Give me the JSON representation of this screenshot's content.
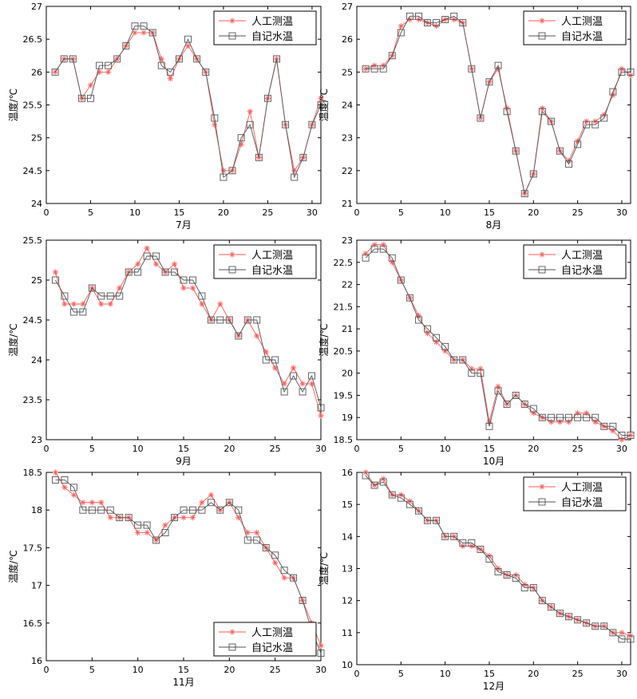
{
  "chart_data": [
    {
      "type": "line",
      "xlabel": "7月",
      "ylabel": "温度/℃",
      "xlim": [
        0,
        31
      ],
      "ylim": [
        24,
        27
      ],
      "xticks": [
        0,
        5,
        10,
        15,
        20,
        25,
        30
      ],
      "yticks": [
        24,
        24.5,
        25,
        25.5,
        26,
        26.5,
        27
      ],
      "legend_position": "top-right",
      "series": [
        {
          "name": "人工测温",
          "color": "#ff5a5a",
          "marker": "star",
          "x": [
            1,
            2,
            3,
            4,
            5,
            6,
            7,
            8,
            9,
            10,
            11,
            12,
            13,
            14,
            15,
            16,
            17,
            18,
            19,
            20,
            21,
            22,
            23,
            24,
            25,
            26,
            27,
            28,
            29,
            30,
            31
          ],
          "values": [
            26.0,
            26.2,
            26.2,
            25.6,
            25.8,
            26.0,
            26.0,
            26.2,
            26.4,
            26.6,
            26.6,
            26.6,
            26.2,
            25.9,
            26.2,
            26.4,
            26.2,
            26.0,
            25.2,
            24.5,
            24.5,
            24.9,
            25.4,
            24.7,
            25.6,
            26.2,
            25.2,
            24.5,
            24.7,
            25.2,
            25.6
          ]
        },
        {
          "name": "自记水温",
          "color": "#555555",
          "marker": "square",
          "x": [
            1,
            2,
            3,
            4,
            5,
            6,
            7,
            8,
            9,
            10,
            11,
            12,
            13,
            14,
            15,
            16,
            17,
            18,
            19,
            20,
            21,
            22,
            23,
            24,
            25,
            26,
            27,
            28,
            29,
            30,
            31
          ],
          "values": [
            26.0,
            26.2,
            26.2,
            25.6,
            25.6,
            26.1,
            26.1,
            26.2,
            26.4,
            26.7,
            26.7,
            26.6,
            26.1,
            26.0,
            26.2,
            26.5,
            26.2,
            26.0,
            25.3,
            24.4,
            24.5,
            25.0,
            25.2,
            24.7,
            25.6,
            26.2,
            25.2,
            24.4,
            24.7,
            25.2,
            25.5
          ]
        }
      ]
    },
    {
      "type": "line",
      "xlabel": "8月",
      "ylabel": "温度/℃",
      "xlim": [
        0,
        31
      ],
      "ylim": [
        21,
        27
      ],
      "xticks": [
        0,
        5,
        10,
        15,
        20,
        25,
        30
      ],
      "yticks": [
        21,
        22,
        23,
        24,
        25,
        26,
        27
      ],
      "legend_position": "top-right",
      "series": [
        {
          "name": "人工测温",
          "color": "#ff5a5a",
          "marker": "star",
          "x": [
            1,
            2,
            3,
            4,
            5,
            6,
            7,
            8,
            9,
            10,
            11,
            12,
            13,
            14,
            15,
            16,
            17,
            18,
            19,
            20,
            21,
            22,
            23,
            24,
            25,
            26,
            27,
            28,
            29,
            30,
            31
          ],
          "values": [
            25.1,
            25.2,
            25.2,
            25.5,
            26.4,
            26.6,
            26.6,
            26.5,
            26.4,
            26.6,
            26.6,
            26.5,
            25.1,
            23.6,
            24.7,
            25.1,
            23.9,
            22.6,
            21.3,
            21.9,
            23.9,
            23.5,
            22.6,
            22.3,
            22.9,
            23.5,
            23.5,
            23.7,
            24.3,
            25.1,
            24.9
          ]
        },
        {
          "name": "自记水温",
          "color": "#555555",
          "marker": "square",
          "x": [
            1,
            2,
            3,
            4,
            5,
            6,
            7,
            8,
            9,
            10,
            11,
            12,
            13,
            14,
            15,
            16,
            17,
            18,
            19,
            20,
            21,
            22,
            23,
            24,
            25,
            26,
            27,
            28,
            29,
            30,
            31
          ],
          "values": [
            25.1,
            25.1,
            25.1,
            25.5,
            26.2,
            26.7,
            26.7,
            26.5,
            26.5,
            26.6,
            26.7,
            26.5,
            25.1,
            23.6,
            24.7,
            25.2,
            23.8,
            22.6,
            21.3,
            21.9,
            23.8,
            23.5,
            22.6,
            22.2,
            22.8,
            23.4,
            23.4,
            23.6,
            24.4,
            25.0,
            25.0
          ]
        }
      ]
    },
    {
      "type": "line",
      "xlabel": "9月",
      "ylabel": "温度/℃",
      "xlim": [
        0,
        30
      ],
      "ylim": [
        23,
        25.5
      ],
      "xticks": [
        0,
        5,
        10,
        15,
        20,
        25,
        30
      ],
      "yticks": [
        23,
        23.5,
        24,
        24.5,
        25,
        25.5
      ],
      "legend_position": "top-right",
      "series": [
        {
          "name": "人工测温",
          "color": "#ff5a5a",
          "marker": "star",
          "x": [
            1,
            2,
            3,
            4,
            5,
            6,
            7,
            8,
            9,
            10,
            11,
            12,
            13,
            14,
            15,
            16,
            17,
            18,
            19,
            20,
            21,
            22,
            23,
            24,
            25,
            26,
            27,
            28,
            29,
            30
          ],
          "values": [
            25.1,
            24.7,
            24.7,
            24.7,
            24.9,
            24.7,
            24.7,
            24.9,
            25.1,
            25.2,
            25.4,
            25.2,
            25.1,
            25.2,
            24.9,
            24.9,
            24.7,
            24.5,
            24.7,
            24.5,
            24.3,
            24.5,
            24.3,
            24.1,
            23.9,
            23.7,
            23.9,
            23.7,
            23.7,
            23.3
          ]
        },
        {
          "name": "自记水温",
          "color": "#555555",
          "marker": "square",
          "x": [
            1,
            2,
            3,
            4,
            5,
            6,
            7,
            8,
            9,
            10,
            11,
            12,
            13,
            14,
            15,
            16,
            17,
            18,
            19,
            20,
            21,
            22,
            23,
            24,
            25,
            26,
            27,
            28,
            29,
            30
          ],
          "values": [
            25.0,
            24.8,
            24.6,
            24.6,
            24.9,
            24.8,
            24.8,
            24.8,
            25.1,
            25.1,
            25.3,
            25.3,
            25.1,
            25.1,
            25.0,
            25.0,
            24.8,
            24.5,
            24.5,
            24.5,
            24.3,
            24.5,
            24.5,
            24.0,
            24.0,
            23.6,
            23.8,
            23.6,
            23.8,
            23.4
          ]
        }
      ]
    },
    {
      "type": "line",
      "xlabel": "10月",
      "ylabel": "温度/℃",
      "xlim": [
        0,
        31
      ],
      "ylim": [
        18.5,
        23
      ],
      "xticks": [
        0,
        5,
        10,
        15,
        20,
        25,
        30
      ],
      "yticks": [
        18.5,
        19,
        19.5,
        20,
        20.5,
        21,
        21.5,
        22,
        22.5,
        23
      ],
      "legend_position": "top-right",
      "series": [
        {
          "name": "人工测温",
          "color": "#ff5a5a",
          "marker": "star",
          "x": [
            1,
            2,
            3,
            4,
            5,
            6,
            7,
            8,
            9,
            10,
            11,
            12,
            13,
            14,
            15,
            16,
            17,
            18,
            19,
            20,
            21,
            22,
            23,
            24,
            25,
            26,
            27,
            28,
            29,
            30,
            31
          ],
          "values": [
            22.7,
            22.9,
            22.9,
            22.5,
            22.1,
            21.7,
            21.3,
            20.9,
            20.7,
            20.5,
            20.3,
            20.3,
            20.1,
            20.1,
            18.9,
            19.7,
            19.3,
            19.5,
            19.3,
            19.1,
            19.0,
            18.9,
            18.9,
            18.9,
            19.1,
            19.1,
            18.9,
            18.8,
            18.7,
            18.5,
            18.6
          ]
        },
        {
          "name": "自记水温",
          "color": "#555555",
          "marker": "square",
          "x": [
            1,
            2,
            3,
            4,
            5,
            6,
            7,
            8,
            9,
            10,
            11,
            12,
            13,
            14,
            15,
            16,
            17,
            18,
            19,
            20,
            21,
            22,
            23,
            24,
            25,
            26,
            27,
            28,
            29,
            30,
            31
          ],
          "values": [
            22.6,
            22.8,
            22.8,
            22.6,
            22.1,
            21.7,
            21.2,
            21.0,
            20.8,
            20.6,
            20.3,
            20.3,
            20.0,
            20.0,
            18.8,
            19.6,
            19.3,
            19.5,
            19.3,
            19.2,
            19.0,
            19.0,
            19.0,
            19.0,
            19.0,
            19.0,
            19.0,
            18.8,
            18.8,
            18.6,
            18.6
          ]
        }
      ]
    },
    {
      "type": "line",
      "xlabel": "11月",
      "ylabel": "温度/℃",
      "xlim": [
        0,
        30
      ],
      "ylim": [
        16,
        18.5
      ],
      "xticks": [
        0,
        5,
        10,
        15,
        20,
        25,
        30
      ],
      "yticks": [
        16,
        16.5,
        17,
        17.5,
        18,
        18.5
      ],
      "legend_position": "bottom-right",
      "series": [
        {
          "name": "人工测温",
          "color": "#ff5a5a",
          "marker": "star",
          "x": [
            1,
            2,
            3,
            4,
            5,
            6,
            7,
            8,
            9,
            10,
            11,
            12,
            13,
            14,
            15,
            16,
            17,
            18,
            19,
            20,
            21,
            22,
            23,
            24,
            25,
            26,
            27,
            28,
            29,
            30
          ],
          "values": [
            18.5,
            18.3,
            18.2,
            18.1,
            18.1,
            18.1,
            17.9,
            17.9,
            17.9,
            17.7,
            17.7,
            17.6,
            17.8,
            17.9,
            17.9,
            17.9,
            18.1,
            18.2,
            18.0,
            18.1,
            17.9,
            17.7,
            17.7,
            17.5,
            17.3,
            17.1,
            17.1,
            16.8,
            16.5,
            16.2
          ]
        },
        {
          "name": "自记水温",
          "color": "#555555",
          "marker": "square",
          "x": [
            1,
            2,
            3,
            4,
            5,
            6,
            7,
            8,
            9,
            10,
            11,
            12,
            13,
            14,
            15,
            16,
            17,
            18,
            19,
            20,
            21,
            22,
            23,
            24,
            25,
            26,
            27,
            28,
            29,
            30
          ],
          "values": [
            18.4,
            18.4,
            18.3,
            18.0,
            18.0,
            18.0,
            18.0,
            17.9,
            17.9,
            17.8,
            17.8,
            17.6,
            17.7,
            17.9,
            18.0,
            18.0,
            18.0,
            18.1,
            18.0,
            18.1,
            18.0,
            17.6,
            17.6,
            17.5,
            17.4,
            17.2,
            17.1,
            16.8,
            16.4,
            16.1
          ]
        }
      ]
    },
    {
      "type": "line",
      "xlabel": "12月",
      "ylabel": "温度/℃",
      "xlim": [
        0,
        31
      ],
      "ylim": [
        10,
        16
      ],
      "xticks": [
        0,
        5,
        10,
        15,
        20,
        25,
        30
      ],
      "yticks": [
        10,
        11,
        12,
        13,
        14,
        15,
        16
      ],
      "legend_position": "top-right",
      "series": [
        {
          "name": "人工测温",
          "color": "#ff5a5a",
          "marker": "star",
          "x": [
            1,
            2,
            3,
            4,
            5,
            6,
            7,
            8,
            9,
            10,
            11,
            12,
            13,
            14,
            15,
            16,
            17,
            18,
            19,
            20,
            21,
            22,
            23,
            24,
            25,
            26,
            27,
            28,
            29,
            30,
            31
          ],
          "values": [
            16.0,
            15.6,
            15.8,
            15.3,
            15.3,
            15.1,
            14.8,
            14.5,
            14.5,
            14.0,
            14.0,
            13.7,
            13.7,
            13.6,
            13.4,
            13.0,
            12.8,
            12.8,
            12.5,
            12.4,
            12.0,
            11.8,
            11.6,
            11.5,
            11.4,
            11.3,
            11.2,
            11.2,
            11.0,
            11.0,
            10.9
          ]
        },
        {
          "name": "自记水温",
          "color": "#555555",
          "marker": "square",
          "x": [
            1,
            2,
            3,
            4,
            5,
            6,
            7,
            8,
            9,
            10,
            11,
            12,
            13,
            14,
            15,
            16,
            17,
            18,
            19,
            20,
            21,
            22,
            23,
            24,
            25,
            26,
            27,
            28,
            29,
            30,
            31
          ],
          "values": [
            15.9,
            15.6,
            15.7,
            15.3,
            15.2,
            15.0,
            14.8,
            14.5,
            14.5,
            14.0,
            14.0,
            13.8,
            13.8,
            13.6,
            13.3,
            12.9,
            12.8,
            12.7,
            12.4,
            12.4,
            12.0,
            11.8,
            11.6,
            11.5,
            11.4,
            11.3,
            11.2,
            11.2,
            11.0,
            10.8,
            10.8
          ]
        }
      ]
    }
  ]
}
